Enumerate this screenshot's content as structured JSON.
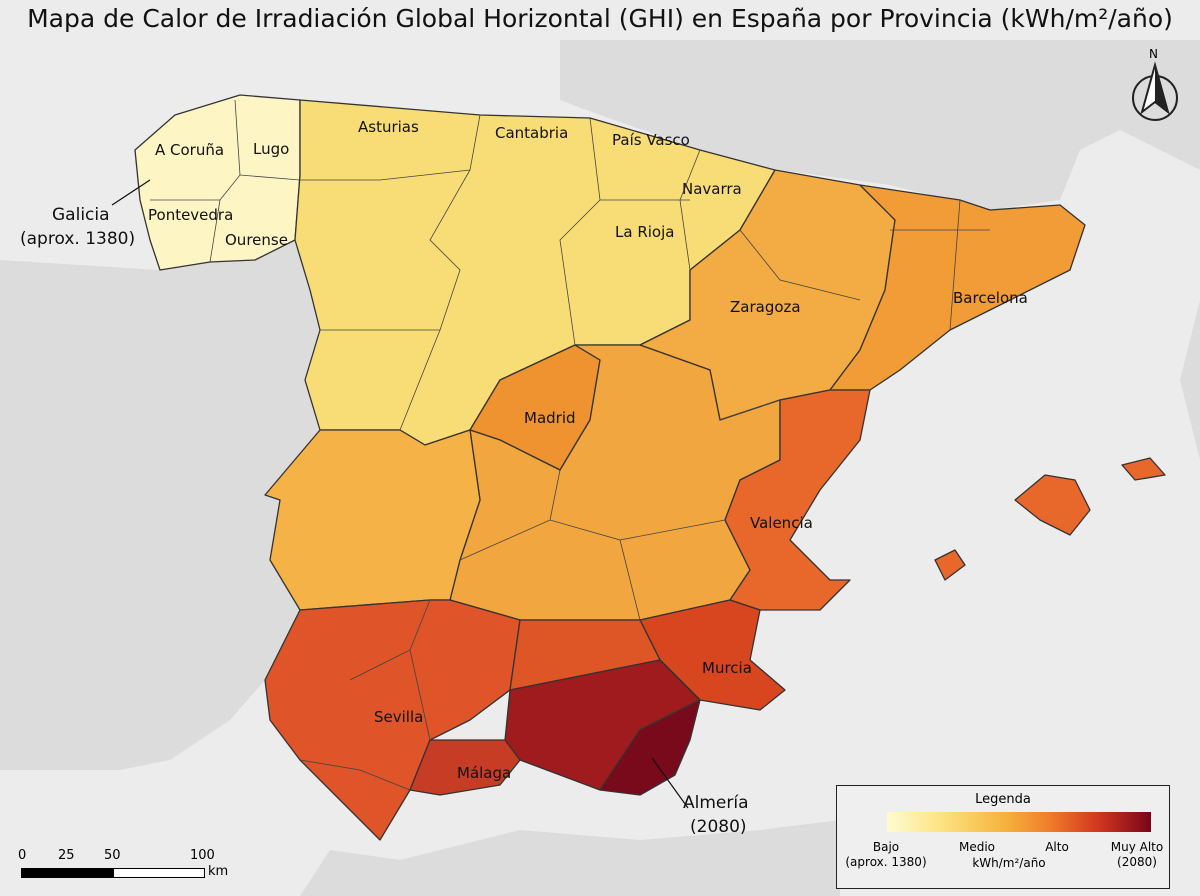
{
  "title": "Mapa de Calor de Irradiación Global Horizontal (GHI) en España por Provincia (kWh/m²/año)",
  "colors": {
    "sea": "#ececec",
    "land": "#dcdcdc",
    "galicia": "#fdf5c4",
    "north": "#f8dd76",
    "aragon": "#f3ab43",
    "catalonia": "#f19c36",
    "madrid": "#ee9330",
    "extremadura": "#f4b247",
    "clm": "#f2a63f",
    "valencia": "#e8672a",
    "murcia": "#d8461f",
    "andalucia_w": "#df5428",
    "jaen": "#de5626",
    "granada": "#9f1b1d",
    "almeria": "#780a1c",
    "malaga": "#c73c24",
    "baleares": "#e8672a"
  },
  "labels": {
    "a_coruna": "A Coruña",
    "lugo": "Lugo",
    "pontevedra": "Pontevedra",
    "ourense": "Ourense",
    "asturias": "Asturias",
    "cantabria": "Cantabria",
    "pais_vasco": "País Vasco",
    "navarra": "Navarra",
    "la_rioja": "La Rioja",
    "zaragoza": "Zaragoza",
    "barcelona": "Barcelona",
    "madrid": "Madrid",
    "valencia": "Valencia",
    "murcia": "Murcia",
    "sevilla": "Sevilla",
    "malaga": "Málaga"
  },
  "annotations": {
    "galicia_name": "Galicia",
    "galicia_value": "(aprox. 1380)",
    "almeria_name": "Almería",
    "almeria_value": "(2080)"
  },
  "north": "N",
  "legend": {
    "title": "Legenda",
    "ticks": [
      "Bajo",
      "Medio",
      "Alto",
      "Muy Alto"
    ],
    "low_value": "(aprox. 1380)",
    "high_value": "(2080)",
    "unit": "kWh/m²/año"
  },
  "scale": {
    "ticks": [
      "0",
      "25",
      "50",
      "100"
    ],
    "unit": "km"
  }
}
